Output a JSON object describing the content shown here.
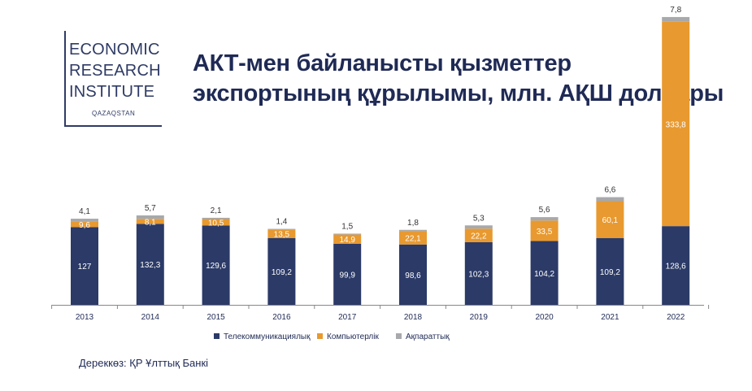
{
  "logo": {
    "line1": "ECONOMIC",
    "line2": "RESEARCH",
    "line3": "INSTITUTE",
    "line4": "QAZAQSTAN"
  },
  "title": {
    "line1": "АКТ-мен байланысты қызметтер",
    "line2": "экспортының құрылымы, млн. АҚШ доллары"
  },
  "source": "Дереккөз: ҚР Ұлттық Банкі",
  "colors": {
    "telecom": "#2b3a67",
    "computer": "#e8992f",
    "info": "#a7a9ac",
    "axis": "#888888",
    "text": "#1f2a55"
  },
  "chart_data": {
    "type": "bar",
    "stacked": true,
    "categories": [
      "2013",
      "2014",
      "2015",
      "2016",
      "2017",
      "2018",
      "2019",
      "2020",
      "2021",
      "2022"
    ],
    "series": [
      {
        "name": "Телекоммуникациялық",
        "values": [
          127,
          132.3,
          129.6,
          109.2,
          99.9,
          98.6,
          102.3,
          104.2,
          109.2,
          128.6
        ],
        "labels": [
          "127",
          "132,3",
          "129,6",
          "109,2",
          "99,9",
          "98,6",
          "102,3",
          "104,2",
          "109,2",
          "128,6"
        ]
      },
      {
        "name": "Компьютерлік",
        "values": [
          9.6,
          8.1,
          10.5,
          13.5,
          14.9,
          22.1,
          22.2,
          33.5,
          60.1,
          333.8
        ],
        "labels": [
          "9,6",
          "8,1",
          "10,5",
          "13,5",
          "14,9",
          "22,1",
          "22,2",
          "33,5",
          "60,1",
          "333,8"
        ]
      },
      {
        "name": "Ақпараттық",
        "values": [
          4.1,
          5.7,
          2.1,
          1.4,
          1.5,
          1.8,
          5.3,
          5.6,
          6.6,
          7.8
        ],
        "labels": [
          "4,1",
          "5,7",
          "2,1",
          "1,4",
          "1,5",
          "1,8",
          "5,3",
          "5,6",
          "6,6",
          "7,8"
        ]
      }
    ],
    "legend_position": "bottom",
    "grid": false
  }
}
